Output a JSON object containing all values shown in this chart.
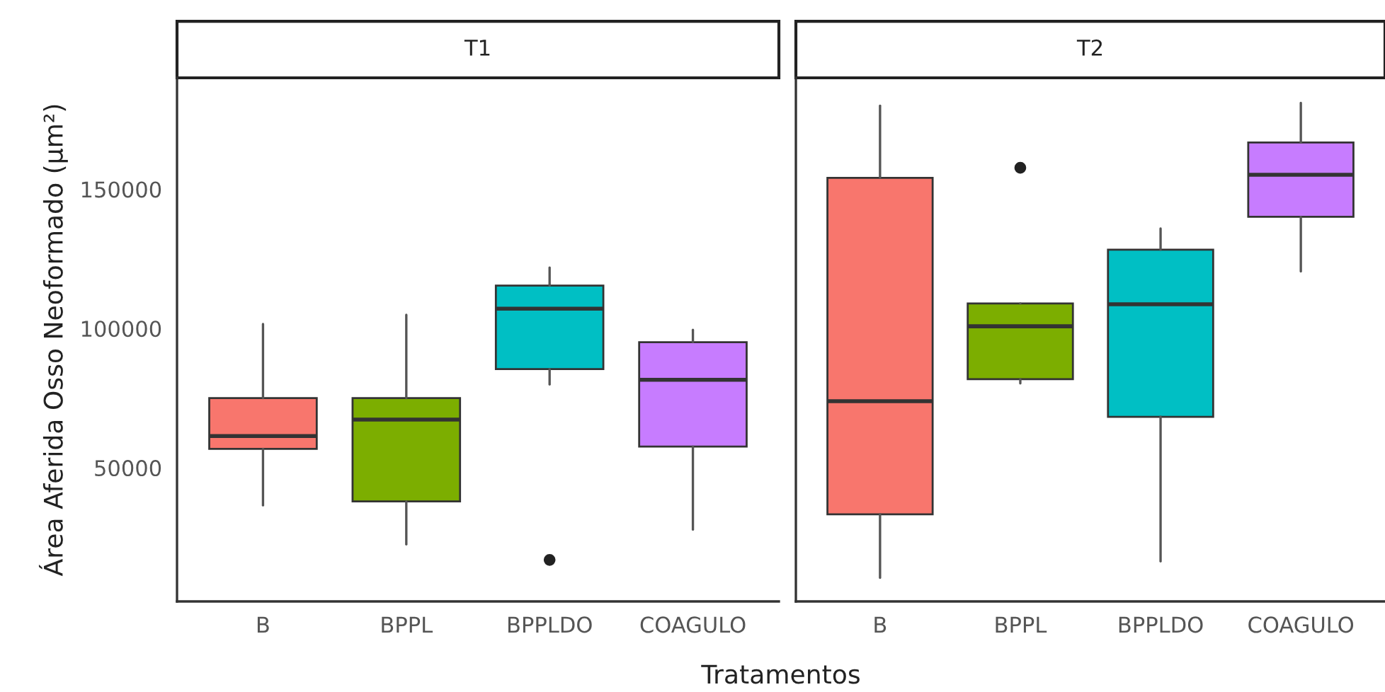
{
  "chart_data": [
    {
      "type": "box",
      "title": "T1",
      "xlabel": "Tratamentos",
      "ylabel": "Área Aferida Osso Neoformado (µm²)",
      "categories": [
        "B",
        "BPPL",
        "BPPLDO",
        "COAGULO"
      ],
      "colors": [
        "#f8766d",
        "#7cae00",
        "#00bfc4",
        "#c77cff"
      ],
      "boxes": [
        {
          "low": 36500,
          "q1": 56800,
          "median": 61400,
          "q3": 75000,
          "high": 101600
        },
        {
          "low": 22500,
          "q1": 37900,
          "median": 67300,
          "q3": 75000,
          "high": 104900
        },
        {
          "low": 79900,
          "q1": 85400,
          "median": 107100,
          "q3": 115400,
          "high": 121900,
          "outliers": [
            16900
          ]
        },
        {
          "low": 27800,
          "q1": 57600,
          "median": 81600,
          "q3": 95100,
          "high": 99500
        }
      ],
      "ylim": [
        2000,
        190000
      ],
      "yticks": [
        50000,
        100000,
        150000
      ]
    },
    {
      "type": "box",
      "title": "T2",
      "categories": [
        "B",
        "BPPL",
        "BPPLDO",
        "COAGULO"
      ],
      "colors": [
        "#f8766d",
        "#7cae00",
        "#00bfc4",
        "#c77cff"
      ],
      "boxes": [
        {
          "low": 10500,
          "q1": 33300,
          "median": 73900,
          "q3": 154100,
          "high": 180000
        },
        {
          "low": 80300,
          "q1": 81800,
          "median": 100800,
          "q3": 109000,
          "high": 109000,
          "outliers": [
            157700
          ]
        },
        {
          "low": 16400,
          "q1": 68300,
          "median": 108700,
          "q3": 128300,
          "high": 135900
        },
        {
          "low": 120500,
          "q1": 140100,
          "median": 155200,
          "q3": 166800,
          "high": 181000
        }
      ],
      "ylim": [
        2000,
        190000
      ],
      "yticks": [
        50000,
        100000,
        150000
      ],
      "tick_labels": "x"
    }
  ]
}
